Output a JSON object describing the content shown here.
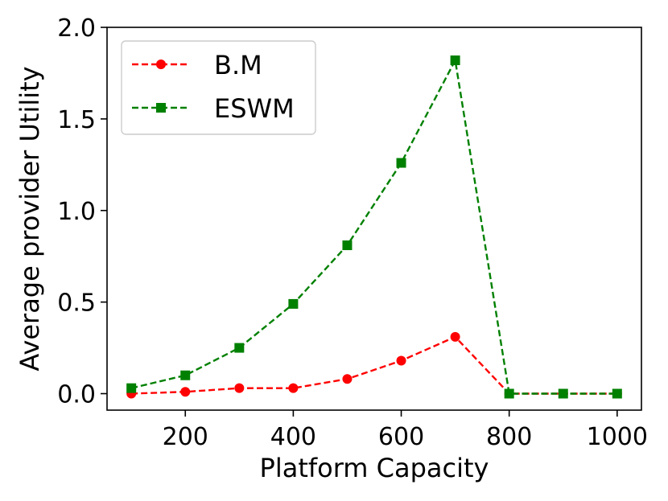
{
  "chart_data": {
    "type": "line",
    "xlabel": "Platform Capacity",
    "ylabel": "Average provider Utility",
    "x": [
      100,
      200,
      300,
      400,
      500,
      600,
      700,
      800,
      900,
      1000
    ],
    "xlim": [
      55,
      1045
    ],
    "ylim": [
      -0.09,
      2.0
    ],
    "xticks": [
      200,
      400,
      600,
      800,
      1000
    ],
    "yticks": [
      0.0,
      0.5,
      1.0,
      1.5,
      2.0
    ],
    "xtick_labels": [
      "200",
      "400",
      "600",
      "800",
      "1000"
    ],
    "ytick_labels": [
      "0.0",
      "0.5",
      "1.0",
      "1.5",
      "2.0"
    ],
    "grid": false,
    "legend": "top-left",
    "series": [
      {
        "name": "B.M",
        "color": "#ff0000",
        "marker": "circle",
        "linestyle": "dashed",
        "values": [
          0.0,
          0.01,
          0.03,
          0.03,
          0.08,
          0.18,
          0.31,
          0.0,
          0.0,
          0.0
        ]
      },
      {
        "name": "ESWM",
        "color": "#008000",
        "marker": "square",
        "linestyle": "dashed",
        "values": [
          0.03,
          0.1,
          0.25,
          0.49,
          0.81,
          1.26,
          1.82,
          0.0,
          0.0,
          0.0
        ]
      }
    ]
  }
}
